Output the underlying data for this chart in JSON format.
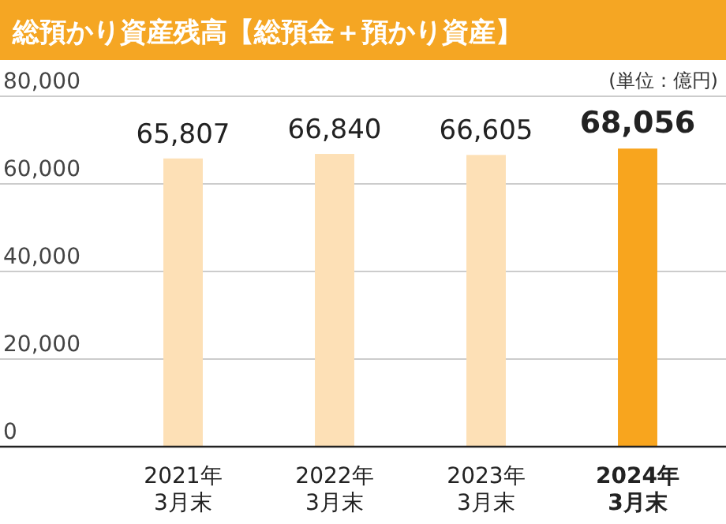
{
  "chart_data": {
    "type": "bar",
    "title": "総預かり資産残高【総預金＋預かり資産】",
    "annotations": [
      "(単位：億円)"
    ],
    "categories": [
      "2021年\n3月末",
      "2022年\n3月末",
      "2023年\n3月末",
      "2024年\n3月末"
    ],
    "values": [
      65807,
      66840,
      66605,
      68056
    ],
    "colors": [
      "#fde0b6",
      "#fde0b6",
      "#fde0b6",
      "#f8a51e"
    ],
    "ylim": [
      0,
      80000
    ],
    "yticks": [
      {
        "value": 0,
        "label": "0"
      },
      {
        "value": 20000,
        "label": "20,000"
      },
      {
        "value": 40000,
        "label": "40,000"
      },
      {
        "value": 60000,
        "label": "60,000"
      },
      {
        "value": 80000,
        "label": "80,000"
      }
    ],
    "value_labels": [
      "65,807",
      "66,840",
      "66,605",
      "68,056"
    ],
    "grid": "y"
  }
}
